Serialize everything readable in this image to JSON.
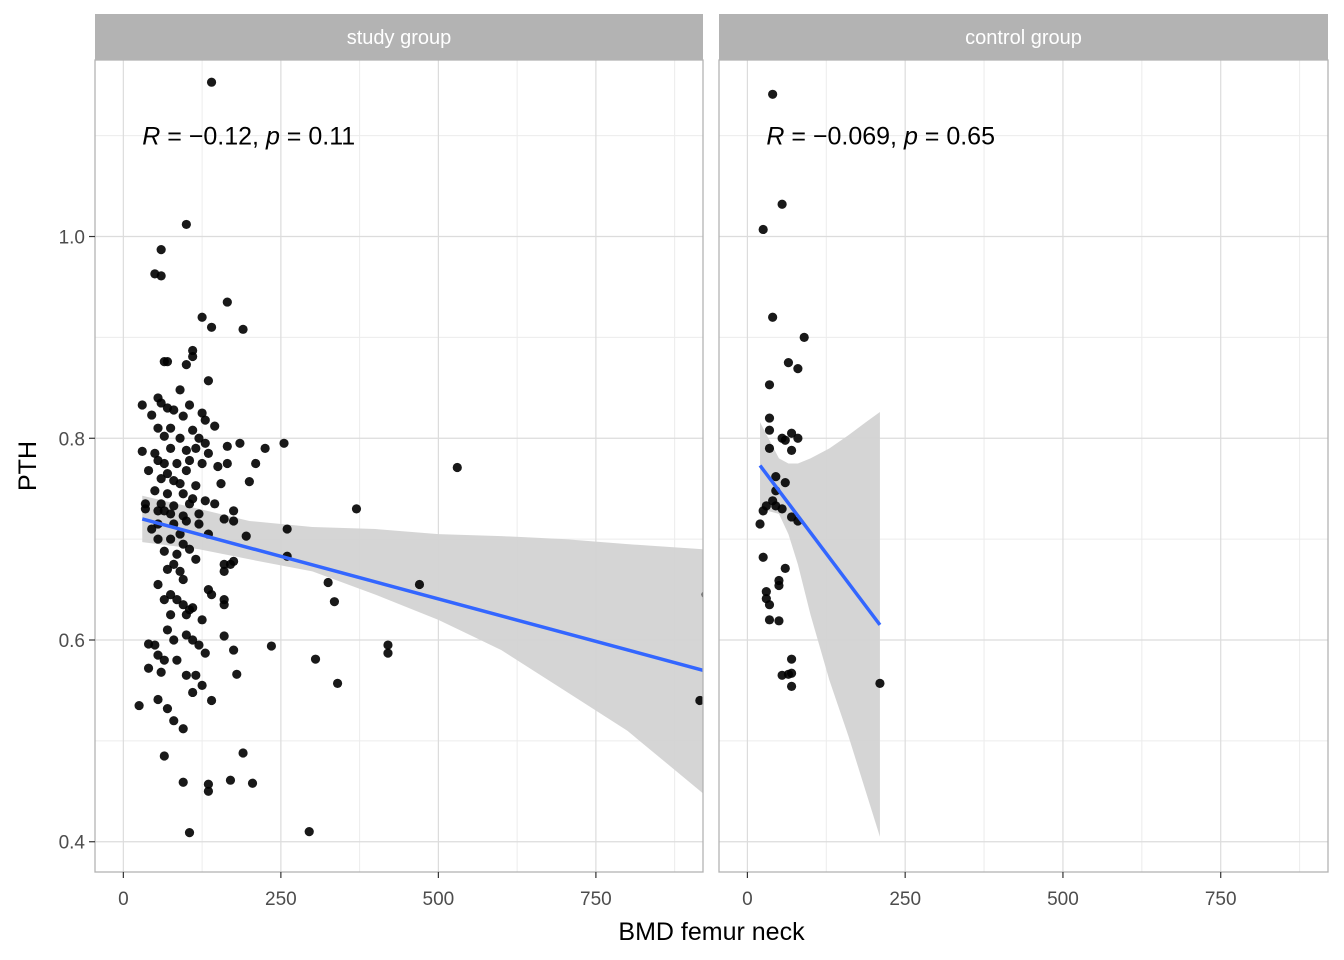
{
  "chart_data": {
    "type": "scatter",
    "xlabel": "BMD femur neck",
    "ylabel": "PTH",
    "xlim": [
      -45,
      920
    ],
    "ylim": [
      0.37,
      1.175
    ],
    "x_ticks": [
      0,
      250,
      500,
      750
    ],
    "y_ticks": [
      0.4,
      0.6,
      0.8,
      1.0
    ],
    "grid": true,
    "colors": {
      "points": "#000000",
      "fit_line": "#3366FF",
      "confidence_band": "#d3d3d3",
      "strip": "#b3b3b3",
      "panel_border": "#b3b3b3",
      "grid_major": "#dcdcdc",
      "grid_minor": "#ececec"
    },
    "panels": [
      {
        "strip": "study group",
        "annotation": {
          "r_label": "R",
          "r_value": " = −0.12, ",
          "p_label": "p",
          "p_value": " = 0.11"
        },
        "fit": {
          "x0": 30,
          "y0": 0.72,
          "x1": 920,
          "y1": 0.57
        },
        "ci": [
          [
            30,
            0.697,
            0.743
          ],
          [
            120,
            0.69,
            0.73
          ],
          [
            200,
            0.68,
            0.718
          ],
          [
            300,
            0.668,
            0.712
          ],
          [
            400,
            0.645,
            0.71
          ],
          [
            500,
            0.62,
            0.705
          ],
          [
            600,
            0.59,
            0.703
          ],
          [
            700,
            0.55,
            0.7
          ],
          [
            800,
            0.51,
            0.695
          ],
          [
            920,
            0.448,
            0.69
          ]
        ],
        "points": [
          [
            140,
            1.153
          ],
          [
            100,
            1.012
          ],
          [
            60,
            0.987
          ],
          [
            50,
            0.963
          ],
          [
            60,
            0.961
          ],
          [
            165,
            0.935
          ],
          [
            125,
            0.92
          ],
          [
            190,
            0.908
          ],
          [
            140,
            0.91
          ],
          [
            110,
            0.887
          ],
          [
            110,
            0.881
          ],
          [
            70,
            0.876
          ],
          [
            65,
            0.876
          ],
          [
            100,
            0.873
          ],
          [
            135,
            0.857
          ],
          [
            90,
            0.848
          ],
          [
            30,
            0.833
          ],
          [
            55,
            0.84
          ],
          [
            60,
            0.835
          ],
          [
            70,
            0.83
          ],
          [
            80,
            0.828
          ],
          [
            105,
            0.833
          ],
          [
            125,
            0.825
          ],
          [
            45,
            0.823
          ],
          [
            95,
            0.822
          ],
          [
            130,
            0.818
          ],
          [
            145,
            0.812
          ],
          [
            55,
            0.81
          ],
          [
            75,
            0.81
          ],
          [
            110,
            0.808
          ],
          [
            65,
            0.802
          ],
          [
            90,
            0.8
          ],
          [
            120,
            0.8
          ],
          [
            130,
            0.795
          ],
          [
            165,
            0.792
          ],
          [
            185,
            0.795
          ],
          [
            225,
            0.79
          ],
          [
            255,
            0.795
          ],
          [
            30,
            0.787
          ],
          [
            50,
            0.785
          ],
          [
            75,
            0.79
          ],
          [
            100,
            0.788
          ],
          [
            115,
            0.79
          ],
          [
            135,
            0.785
          ],
          [
            55,
            0.778
          ],
          [
            65,
            0.775
          ],
          [
            85,
            0.775
          ],
          [
            105,
            0.778
          ],
          [
            125,
            0.775
          ],
          [
            150,
            0.772
          ],
          [
            165,
            0.775
          ],
          [
            210,
            0.775
          ],
          [
            530,
            0.771
          ],
          [
            40,
            0.768
          ],
          [
            70,
            0.765
          ],
          [
            100,
            0.768
          ],
          [
            60,
            0.76
          ],
          [
            80,
            0.758
          ],
          [
            90,
            0.755
          ],
          [
            115,
            0.753
          ],
          [
            155,
            0.755
          ],
          [
            200,
            0.757
          ],
          [
            50,
            0.748
          ],
          [
            70,
            0.745
          ],
          [
            95,
            0.745
          ],
          [
            110,
            0.74
          ],
          [
            35,
            0.735
          ],
          [
            60,
            0.735
          ],
          [
            80,
            0.733
          ],
          [
            105,
            0.735
          ],
          [
            130,
            0.738
          ],
          [
            145,
            0.735
          ],
          [
            175,
            0.728
          ],
          [
            35,
            0.73
          ],
          [
            55,
            0.728
          ],
          [
            65,
            0.728
          ],
          [
            75,
            0.725
          ],
          [
            95,
            0.723
          ],
          [
            120,
            0.725
          ],
          [
            370,
            0.73
          ],
          [
            55,
            0.715
          ],
          [
            80,
            0.715
          ],
          [
            100,
            0.718
          ],
          [
            120,
            0.715
          ],
          [
            160,
            0.72
          ],
          [
            175,
            0.718
          ],
          [
            260,
            0.71
          ],
          [
            45,
            0.71
          ],
          [
            90,
            0.705
          ],
          [
            135,
            0.705
          ],
          [
            195,
            0.703
          ],
          [
            55,
            0.7
          ],
          [
            75,
            0.7
          ],
          [
            95,
            0.695
          ],
          [
            105,
            0.69
          ],
          [
            65,
            0.688
          ],
          [
            85,
            0.685
          ],
          [
            115,
            0.68
          ],
          [
            160,
            0.675
          ],
          [
            175,
            0.678
          ],
          [
            260,
            0.683
          ],
          [
            80,
            0.675
          ],
          [
            70,
            0.67
          ],
          [
            90,
            0.668
          ],
          [
            160,
            0.668
          ],
          [
            170,
            0.675
          ],
          [
            55,
            0.655
          ],
          [
            95,
            0.66
          ],
          [
            325,
            0.657
          ],
          [
            470,
            0.655
          ],
          [
            925,
            0.645
          ],
          [
            135,
            0.65
          ],
          [
            140,
            0.645
          ],
          [
            75,
            0.645
          ],
          [
            85,
            0.64
          ],
          [
            65,
            0.64
          ],
          [
            95,
            0.635
          ],
          [
            110,
            0.632
          ],
          [
            105,
            0.63
          ],
          [
            160,
            0.64
          ],
          [
            160,
            0.635
          ],
          [
            335,
            0.638
          ],
          [
            75,
            0.625
          ],
          [
            100,
            0.625
          ],
          [
            125,
            0.62
          ],
          [
            40,
            0.596
          ],
          [
            50,
            0.595
          ],
          [
            70,
            0.61
          ],
          [
            80,
            0.6
          ],
          [
            100,
            0.605
          ],
          [
            110,
            0.6
          ],
          [
            120,
            0.595
          ],
          [
            160,
            0.604
          ],
          [
            175,
            0.59
          ],
          [
            235,
            0.594
          ],
          [
            420,
            0.595
          ],
          [
            420,
            0.587
          ],
          [
            130,
            0.587
          ],
          [
            55,
            0.585
          ],
          [
            65,
            0.58
          ],
          [
            85,
            0.58
          ],
          [
            305,
            0.581
          ],
          [
            40,
            0.572
          ],
          [
            60,
            0.568
          ],
          [
            100,
            0.565
          ],
          [
            115,
            0.565
          ],
          [
            180,
            0.566
          ],
          [
            340,
            0.557
          ],
          [
            125,
            0.555
          ],
          [
            110,
            0.548
          ],
          [
            55,
            0.541
          ],
          [
            140,
            0.54
          ],
          [
            915,
            0.54
          ],
          [
            25,
            0.535
          ],
          [
            70,
            0.532
          ],
          [
            80,
            0.52
          ],
          [
            95,
            0.512
          ],
          [
            65,
            0.485
          ],
          [
            190,
            0.488
          ],
          [
            95,
            0.459
          ],
          [
            135,
            0.457
          ],
          [
            170,
            0.461
          ],
          [
            205,
            0.458
          ],
          [
            135,
            0.45
          ],
          [
            105,
            0.409
          ],
          [
            295,
            0.41
          ]
        ]
      },
      {
        "strip": "control group",
        "annotation": {
          "r_label": "R",
          "r_value": " = −0.069, ",
          "p_label": "p",
          "p_value": " = 0.65"
        },
        "fit": {
          "x0": 20,
          "y0": 0.773,
          "x1": 210,
          "y1": 0.615
        },
        "ci": [
          [
            20,
            0.73,
            0.816
          ],
          [
            50,
            0.725,
            0.78
          ],
          [
            65,
            0.705,
            0.775
          ],
          [
            80,
            0.675,
            0.775
          ],
          [
            100,
            0.625,
            0.78
          ],
          [
            130,
            0.56,
            0.79
          ],
          [
            160,
            0.505,
            0.803
          ],
          [
            190,
            0.445,
            0.817
          ],
          [
            210,
            0.405,
            0.826
          ]
        ],
        "points": [
          [
            40,
            1.141
          ],
          [
            55,
            1.032
          ],
          [
            25,
            1.007
          ],
          [
            40,
            0.92
          ],
          [
            90,
            0.9
          ],
          [
            65,
            0.875
          ],
          [
            80,
            0.869
          ],
          [
            35,
            0.853
          ],
          [
            35,
            0.82
          ],
          [
            35,
            0.808
          ],
          [
            70,
            0.805
          ],
          [
            55,
            0.8
          ],
          [
            60,
            0.798
          ],
          [
            80,
            0.8
          ],
          [
            70,
            0.788
          ],
          [
            35,
            0.79
          ],
          [
            45,
            0.762
          ],
          [
            60,
            0.756
          ],
          [
            45,
            0.748
          ],
          [
            40,
            0.738
          ],
          [
            30,
            0.733
          ],
          [
            45,
            0.733
          ],
          [
            55,
            0.73
          ],
          [
            25,
            0.728
          ],
          [
            70,
            0.722
          ],
          [
            80,
            0.718
          ],
          [
            20,
            0.715
          ],
          [
            25,
            0.682
          ],
          [
            60,
            0.671
          ],
          [
            50,
            0.659
          ],
          [
            50,
            0.654
          ],
          [
            30,
            0.648
          ],
          [
            30,
            0.641
          ],
          [
            35,
            0.635
          ],
          [
            35,
            0.62
          ],
          [
            50,
            0.619
          ],
          [
            70,
            0.581
          ],
          [
            65,
            0.566
          ],
          [
            55,
            0.565
          ],
          [
            70,
            0.567
          ],
          [
            210,
            0.557
          ],
          [
            70,
            0.554
          ]
        ]
      }
    ]
  }
}
